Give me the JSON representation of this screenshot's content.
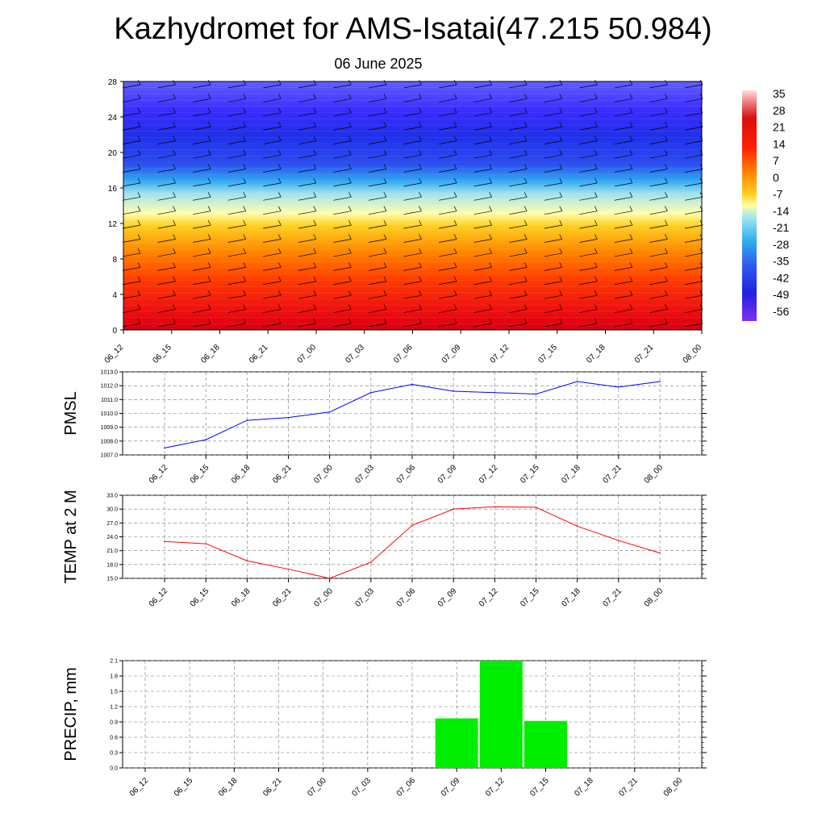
{
  "title": "Kazhydromet for AMS-Isatai(47.215 50.984)",
  "subtitle": "06 June 2025",
  "colors": {
    "pmsl_line": "#0000ff",
    "temp_line": "#ff0000",
    "precip_bar": "#00ee00"
  },
  "chart_data": [
    {
      "type": "heatmap",
      "name": "temperature-wind-profile",
      "x": [
        "06_12",
        "06_15",
        "06_18",
        "06_21",
        "07_00",
        "07_03",
        "07_06",
        "07_09",
        "07_12",
        "07_15",
        "07_18",
        "07_21",
        "08_00"
      ],
      "y_ticks": [
        0,
        4,
        8,
        12,
        16,
        20,
        24,
        28
      ],
      "ylim": [
        0,
        28
      ],
      "colorbar": {
        "labels": [
          "35",
          "28",
          "21",
          "14",
          "7",
          "0",
          "-7",
          "-14",
          "-21",
          "-28",
          "-35",
          "-42",
          "-49",
          "-56"
        ],
        "range": [
          -63,
          35
        ]
      },
      "wind_barbs": true
    },
    {
      "type": "line",
      "ylabel": "PMSL",
      "x": [
        "06_12",
        "06_15",
        "06_18",
        "06_21",
        "07_00",
        "07_03",
        "07_06",
        "07_09",
        "07_12",
        "07_15",
        "07_18",
        "07_21",
        "08_00"
      ],
      "values": [
        1007.5,
        1008.1,
        1009.5,
        1009.7,
        1010.1,
        1011.5,
        1012.1,
        1011.6,
        1011.5,
        1011.4,
        1012.3,
        1011.9,
        1012.3
      ],
      "ylim": [
        1007.0,
        1013.0
      ],
      "y_ticks": [
        "1007.0",
        "1008.0",
        "1009.0",
        "1010.0",
        "1011.0",
        "1012.0",
        "1013.0"
      ],
      "grid": true
    },
    {
      "type": "line",
      "ylabel": "TEMP at 2 M",
      "x": [
        "06_12",
        "06_15",
        "06_18",
        "06_21",
        "07_00",
        "07_03",
        "07_06",
        "07_09",
        "07_12",
        "07_15",
        "07_18",
        "07_21",
        "08_00"
      ],
      "values": [
        23.0,
        22.5,
        18.8,
        17.0,
        15.0,
        18.5,
        26.5,
        30.0,
        30.5,
        30.4,
        26.3,
        23.2,
        20.5
      ],
      "ylim": [
        15.0,
        33.0
      ],
      "y_ticks": [
        "15.0",
        "18.0",
        "21.0",
        "24.0",
        "27.0",
        "30.0",
        "33.0"
      ],
      "grid": true
    },
    {
      "type": "bar",
      "ylabel": "PRECIP, mm",
      "categories": [
        "06_12",
        "06_15",
        "06_18",
        "06_21",
        "07_00",
        "07_03",
        "07_06",
        "07_09",
        "07_12",
        "07_15",
        "07_18",
        "07_21",
        "08_00"
      ],
      "values": [
        0,
        0,
        0,
        0,
        0,
        0,
        0,
        0.97,
        2.1,
        0.92,
        0,
        0,
        0
      ],
      "ylim": [
        0.0,
        2.1
      ],
      "y_ticks": [
        "0.0",
        "0.3",
        "0.6",
        "0.9",
        "1.2",
        "1.5",
        "1.8",
        "2.1"
      ],
      "grid": true
    }
  ]
}
